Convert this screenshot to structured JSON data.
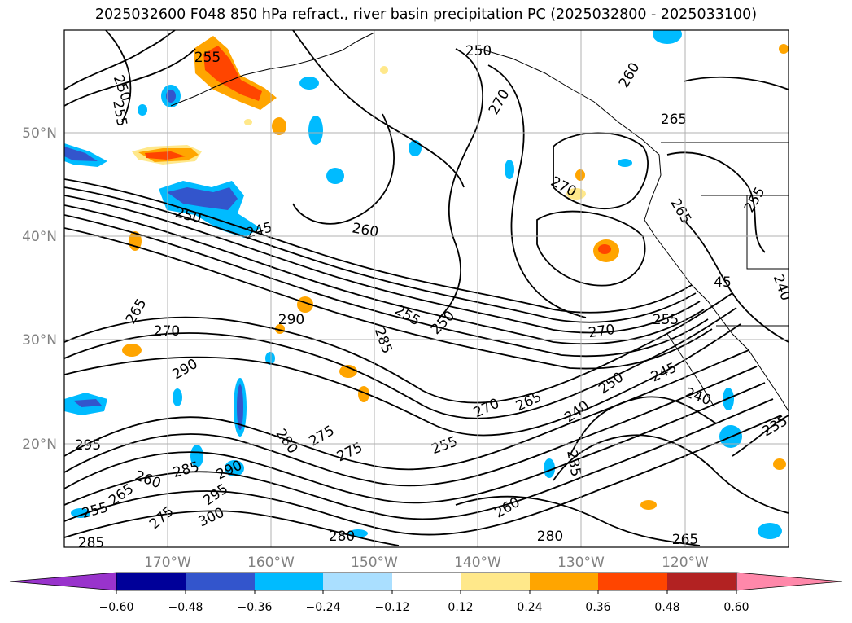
{
  "title": "2025032600 F048 850 hPa refract., river basin precipitation PC (2025032800 - 2025033100)",
  "latitude_labels": [
    "50°N",
    "40°N",
    "30°N",
    "20°N"
  ],
  "longitude_labels": [
    "170°W",
    "160°W",
    "150°W",
    "140°W",
    "130°W",
    "120°W"
  ],
  "colorbar": {
    "colors": [
      "#9933cc",
      "#000099",
      "#3355cc",
      "#00bbff",
      "#aadfff",
      "#ffffff",
      "#ffe88a",
      "#ffa500",
      "#ff4500",
      "#b22222",
      "#ff88aa"
    ],
    "tick_labels": [
      "−0.60",
      "−0.48",
      "−0.36",
      "−0.24",
      "−0.12",
      "0.12",
      "0.24",
      "0.36",
      "0.48",
      "0.60"
    ]
  },
  "contour_labels": [
    {
      "text": "255"
    },
    {
      "text": "250"
    },
    {
      "text": "255"
    },
    {
      "text": "250"
    },
    {
      "text": "270"
    },
    {
      "text": "260"
    },
    {
      "text": "265"
    },
    {
      "text": "270"
    },
    {
      "text": "250"
    },
    {
      "text": "245"
    },
    {
      "text": "260"
    },
    {
      "text": "255"
    },
    {
      "text": "265"
    },
    {
      "text": "45"
    },
    {
      "text": "240"
    },
    {
      "text": "265"
    },
    {
      "text": "290"
    },
    {
      "text": "270"
    },
    {
      "text": "255"
    },
    {
      "text": "250"
    },
    {
      "text": "270"
    },
    {
      "text": "255"
    },
    {
      "text": "285"
    },
    {
      "text": "290"
    },
    {
      "text": "245"
    },
    {
      "text": "240"
    },
    {
      "text": "270"
    },
    {
      "text": "265"
    },
    {
      "text": "250"
    },
    {
      "text": "240"
    },
    {
      "text": "235"
    },
    {
      "text": "295"
    },
    {
      "text": "280"
    },
    {
      "text": "275"
    },
    {
      "text": "275"
    },
    {
      "text": "255"
    },
    {
      "text": "235"
    },
    {
      "text": "260"
    },
    {
      "text": "285"
    },
    {
      "text": "290"
    },
    {
      "text": "295"
    },
    {
      "text": "300"
    },
    {
      "text": "255"
    },
    {
      "text": "265"
    },
    {
      "text": "275"
    },
    {
      "text": "260"
    },
    {
      "text": "280"
    },
    {
      "text": "285"
    },
    {
      "text": "280"
    },
    {
      "text": "265"
    }
  ]
}
